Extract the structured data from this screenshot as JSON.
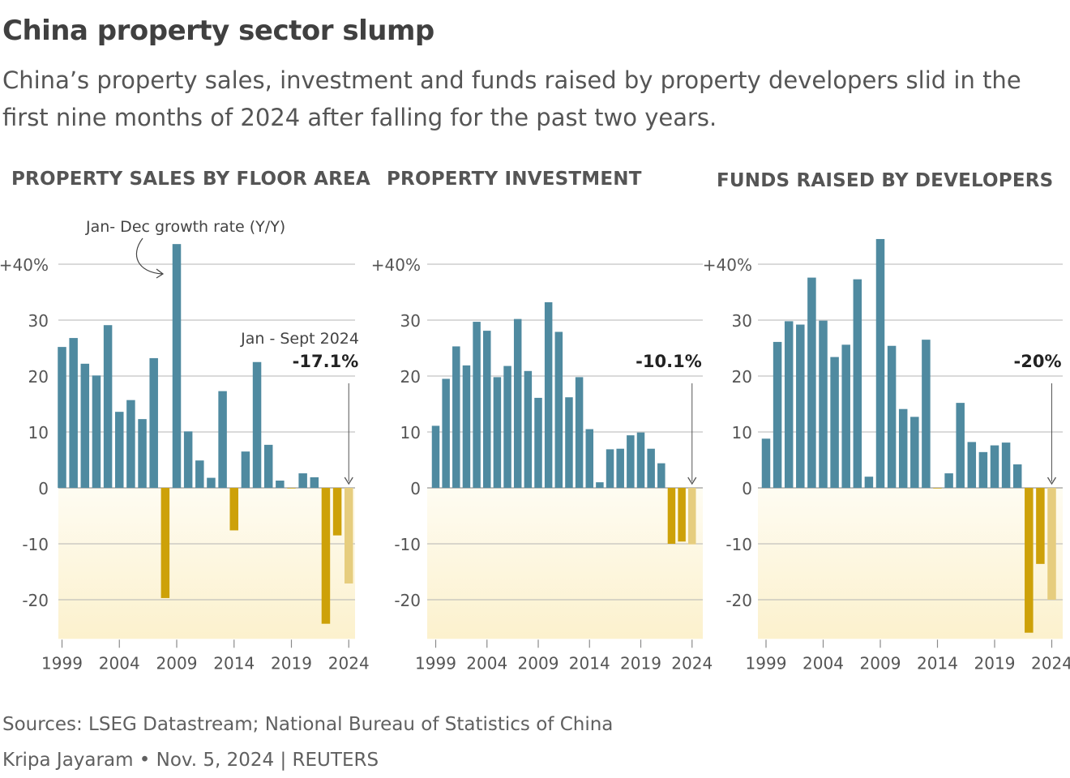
{
  "header": {
    "title": "China property sector slump",
    "subtitle": "China’s property sales, investment and funds raised by property developers slid in the first nine months of 2024 after falling for the past two years."
  },
  "colors": {
    "positive": "#4f8aa0",
    "negative": "#cda109",
    "partial": "#e6cd7e",
    "grid": "#b4b4b4",
    "band_top": "#fefcf2",
    "band_bottom": "#fcf1cd"
  },
  "annotations": {
    "growth_label": "Jan- Dec growth rate (Y/Y)",
    "partial_label": "Jan - Sept 2024"
  },
  "chart_data": [
    {
      "type": "bar",
      "title": "PROPERTY SALES BY FLOOR AREA",
      "xlabel": "",
      "ylabel": "Jan- Dec growth rate (Y/Y)",
      "ylim": [
        -27,
        44
      ],
      "yticks": [
        {
          "value": 40,
          "label": "+40%"
        },
        {
          "value": 30,
          "label": "30"
        },
        {
          "value": 20,
          "label": "20"
        },
        {
          "value": 10,
          "label": "10"
        },
        {
          "value": 0,
          "label": "0"
        },
        {
          "value": -10,
          "label": "-10"
        },
        {
          "value": -20,
          "label": "-20"
        }
      ],
      "xticks": [
        "1999",
        "2004",
        "2009",
        "2014",
        "2019",
        "2024"
      ],
      "categories": [
        "1999",
        "2000",
        "2001",
        "2002",
        "2003",
        "2004",
        "2005",
        "2006",
        "2007",
        "2008",
        "2009",
        "2010",
        "2011",
        "2012",
        "2013",
        "2014",
        "2015",
        "2016",
        "2017",
        "2018",
        "2019",
        "2020",
        "2021",
        "2022",
        "2023",
        "2024"
      ],
      "values": [
        25.2,
        26.8,
        22.2,
        20.1,
        29.1,
        13.6,
        15.7,
        12.3,
        23.2,
        -19.7,
        43.6,
        10.1,
        4.9,
        1.8,
        17.3,
        -7.6,
        6.5,
        22.5,
        7.7,
        1.3,
        -0.1,
        2.6,
        1.9,
        -24.3,
        -8.5,
        -17.1
      ],
      "partial_category": "2024",
      "callout": "-17.1%"
    },
    {
      "type": "bar",
      "title": "PROPERTY INVESTMENT",
      "xlabel": "",
      "ylabel": "",
      "ylim": [
        -27,
        44
      ],
      "yticks": [
        {
          "value": 40,
          "label": "+40%"
        },
        {
          "value": 30,
          "label": "30"
        },
        {
          "value": 20,
          "label": "20"
        },
        {
          "value": 10,
          "label": "10"
        },
        {
          "value": 0,
          "label": "0"
        },
        {
          "value": -10,
          "label": "-10"
        },
        {
          "value": -20,
          "label": "-20"
        }
      ],
      "xticks": [
        "1999",
        "2004",
        "2009",
        "2014",
        "2019",
        "2024"
      ],
      "categories": [
        "1999",
        "2000",
        "2001",
        "2002",
        "2003",
        "2004",
        "2005",
        "2006",
        "2007",
        "2008",
        "2009",
        "2010",
        "2011",
        "2012",
        "2013",
        "2014",
        "2015",
        "2016",
        "2017",
        "2018",
        "2019",
        "2020",
        "2021",
        "2022",
        "2023",
        "2024"
      ],
      "values": [
        11.1,
        19.5,
        25.3,
        21.9,
        29.7,
        28.1,
        19.8,
        21.8,
        30.2,
        20.9,
        16.1,
        33.2,
        27.9,
        16.2,
        19.8,
        10.5,
        1.0,
        6.9,
        7.0,
        9.4,
        9.9,
        7.0,
        4.4,
        -10.0,
        -9.6,
        -10.1
      ],
      "partial_category": "2024",
      "callout": "-10.1%"
    },
    {
      "type": "bar",
      "title": "FUNDS RAISED BY DEVELOPERS",
      "xlabel": "",
      "ylabel": "",
      "ylim": [
        -27,
        44
      ],
      "yticks": [
        {
          "value": 40,
          "label": "+40%"
        },
        {
          "value": 30,
          "label": "30"
        },
        {
          "value": 20,
          "label": "20"
        },
        {
          "value": 10,
          "label": "10"
        },
        {
          "value": 0,
          "label": "0"
        },
        {
          "value": -10,
          "label": "-10"
        },
        {
          "value": -20,
          "label": "-20"
        }
      ],
      "xticks": [
        "1999",
        "2004",
        "2009",
        "2014",
        "2019",
        "2024"
      ],
      "categories": [
        "1999",
        "2000",
        "2001",
        "2002",
        "2003",
        "2004",
        "2005",
        "2006",
        "2007",
        "2008",
        "2009",
        "2010",
        "2011",
        "2012",
        "2013",
        "2014",
        "2015",
        "2016",
        "2017",
        "2018",
        "2019",
        "2020",
        "2021",
        "2022",
        "2023",
        "2024"
      ],
      "values": [
        8.8,
        26.1,
        29.8,
        29.2,
        37.6,
        29.9,
        23.4,
        25.6,
        37.3,
        2.0,
        44.5,
        25.4,
        14.1,
        12.7,
        26.5,
        -0.1,
        2.6,
        15.2,
        8.2,
        6.4,
        7.6,
        8.1,
        4.2,
        -25.9,
        -13.6,
        -20.0
      ],
      "partial_category": "2024",
      "callout": "-20%"
    }
  ],
  "footer": {
    "sources": "Sources: LSEG Datastream; National Bureau of Statistics of China",
    "credit": "Kripa Jayaram • Nov. 5, 2024 | REUTERS"
  }
}
